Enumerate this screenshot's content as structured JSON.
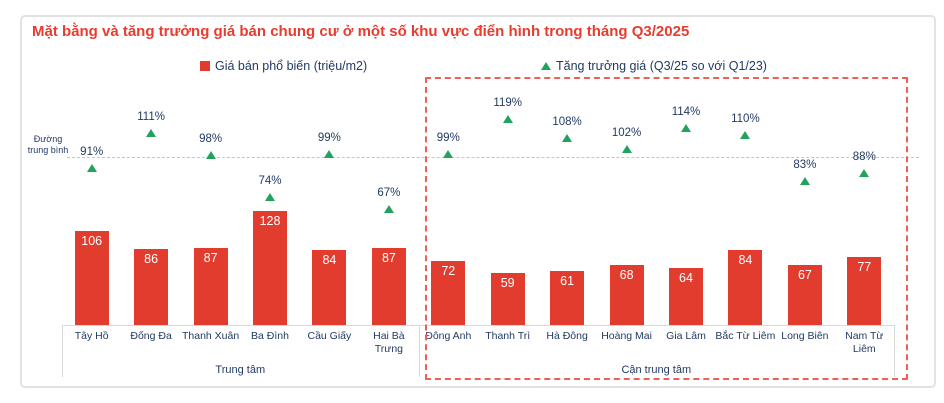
{
  "title": "Mặt bằng và tăng trưởng giá bán chung cư ở một số khu vực điển hình trong tháng Q3/2025",
  "legend": {
    "price_label": "Giá bán phổ biến (triệu/m2)",
    "growth_label": "Tăng trưởng giá (Q3/25 so với Q1/23)"
  },
  "average_line": {
    "label": "Đường trung bình",
    "value_pct": 97
  },
  "colors": {
    "title_red": "#e73c2e",
    "bar_red": "#e23c2e",
    "growth_green": "#21a35d",
    "text_navy": "#223a63",
    "grid_gray": "#d9d9d9",
    "dashed_box_red": "#ec6055"
  },
  "chart_data": {
    "type": "bar",
    "title": "Mặt bằng và tăng trưởng giá bán chung cư ở một số khu vực điển hình trong tháng Q3/2025",
    "categories": [
      "Tây Hồ",
      "Đống Đa",
      "Thanh Xuân",
      "Ba Đình",
      "Cầu Giấy",
      "Hai Bà Trưng",
      "Đông Anh",
      "Thanh Trì",
      "Hà Đông",
      "Hoàng Mai",
      "Gia Lâm",
      "Bắc Từ Liêm",
      "Long Biên",
      "Nam Từ Liêm"
    ],
    "series": [
      {
        "name": "Giá bán phổ biến (triệu/m2)",
        "type": "bar",
        "unit": "triệu/m2",
        "values": [
          106,
          86,
          87,
          128,
          84,
          87,
          72,
          59,
          61,
          68,
          64,
          84,
          67,
          77
        ]
      },
      {
        "name": "Tăng trưởng giá (Q3/25 so với Q1/23)",
        "type": "scatter",
        "marker": "triangle",
        "unit": "%",
        "values": [
          91,
          111,
          98,
          74,
          99,
          67,
          99,
          119,
          108,
          102,
          114,
          110,
          83,
          88
        ]
      }
    ],
    "groups": [
      {
        "label": "Trung tâm",
        "span": [
          0,
          5
        ],
        "highlighted": false
      },
      {
        "label": "Cận trung tâm",
        "span": [
          6,
          13
        ],
        "highlighted": true
      }
    ],
    "average_line_pct": 97,
    "legend_position": "top",
    "grid": false
  }
}
